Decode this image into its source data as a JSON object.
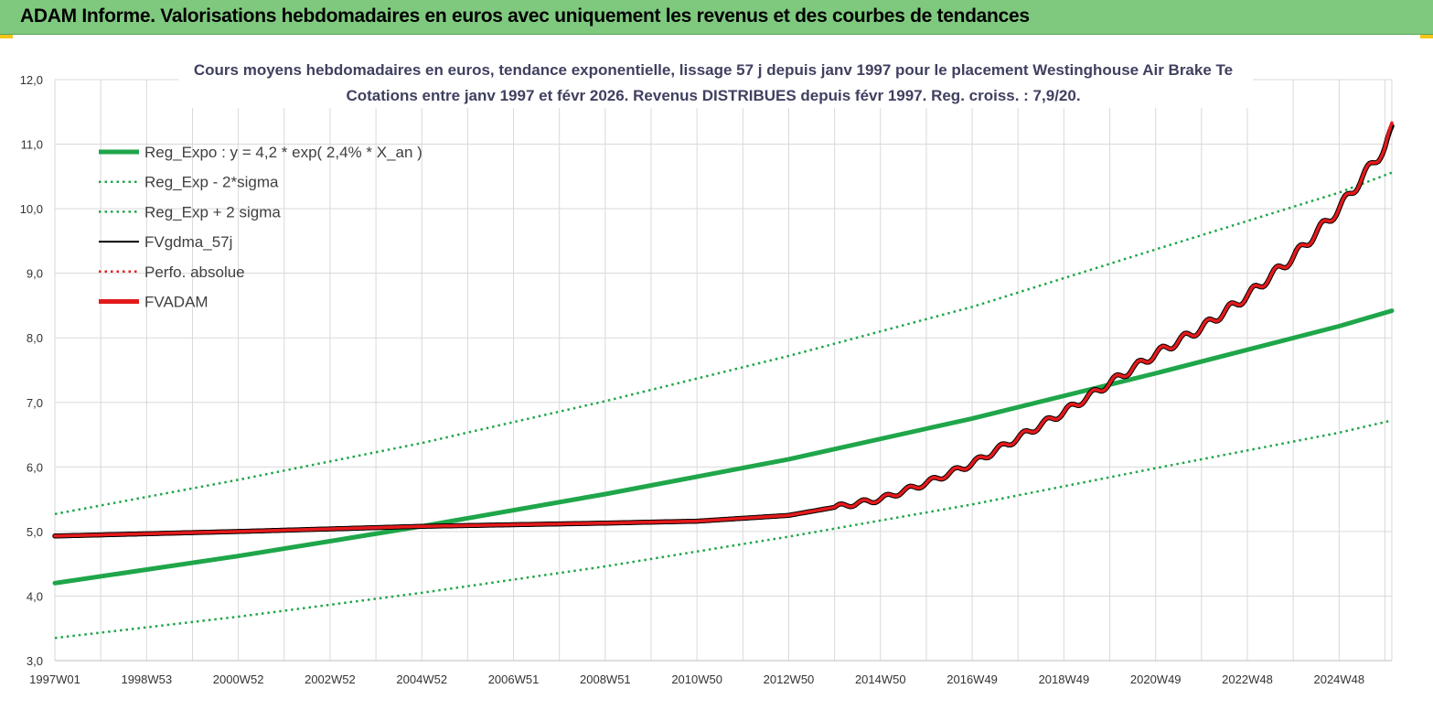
{
  "header": {
    "title": "ADAM Informe. Valorisations hebdomadaires en euros avec uniquement les revenus et des courbes de tendances"
  },
  "chart_data": {
    "type": "line",
    "title_line1": "Cours moyens hebdomadaires en euros, tendance exponentielle, lissage 57 j depuis janv 1997  pour le placement Westinghouse Air Brake Te",
    "title_line2": "Cotations entre janv 1997  et févr  2026.  Revenus DISTRIBUES  depuis févr 1997.  Reg. croiss. : 7,9/20.",
    "xlabel": "",
    "ylabel": "",
    "ylim": [
      3.0,
      12.0
    ],
    "xlim": [
      1997.0,
      2026.15
    ],
    "y_ticks": [
      "3,0",
      "4,0",
      "5,0",
      "6,0",
      "7,0",
      "8,0",
      "9,0",
      "10,0",
      "11,0",
      "12,0"
    ],
    "x_ticks": [
      {
        "label": "1997W01",
        "x": 1997.0
      },
      {
        "label": "1998W53",
        "x": 1999.0
      },
      {
        "label": "2000W52",
        "x": 2001.0
      },
      {
        "label": "2002W52",
        "x": 2003.0
      },
      {
        "label": "2004W52",
        "x": 2005.0
      },
      {
        "label": "2006W51",
        "x": 2007.0
      },
      {
        "label": "2008W51",
        "x": 2009.0
      },
      {
        "label": "2010W50",
        "x": 2011.0
      },
      {
        "label": "2012W50",
        "x": 2013.0
      },
      {
        "label": "2014W50",
        "x": 2015.0
      },
      {
        "label": "2016W49",
        "x": 2017.0
      },
      {
        "label": "2018W49",
        "x": 2019.0
      },
      {
        "label": "2020W49",
        "x": 2021.0
      },
      {
        "label": "2022W48",
        "x": 2023.0
      },
      {
        "label": "2024W48",
        "x": 2025.0
      }
    ],
    "grid": true,
    "legend_position": "top-left",
    "series": [
      {
        "name": "Reg_Expo : y = 4,2 * exp( 2,4% *  X_an )",
        "style": "solid-thick",
        "color": "#1fa64a",
        "x": [
          1997.0,
          2001.0,
          2005.0,
          2009.0,
          2013.0,
          2017.0,
          2021.0,
          2025.0,
          2026.15
        ],
        "y": [
          4.2,
          4.62,
          5.08,
          5.58,
          6.12,
          6.75,
          7.45,
          8.18,
          8.42
        ]
      },
      {
        "name": "Reg_Exp - 2*sigma",
        "style": "dotted",
        "color": "#1fa64a",
        "x": [
          1997.0,
          2001.0,
          2005.0,
          2009.0,
          2013.0,
          2017.0,
          2021.0,
          2025.0,
          2026.15
        ],
        "y": [
          3.35,
          3.68,
          4.05,
          4.46,
          4.92,
          5.42,
          5.98,
          6.53,
          6.72
        ]
      },
      {
        "name": "Reg_Exp + 2 sigma",
        "style": "dotted",
        "color": "#1fa64a",
        "x": [
          1997.0,
          2001.0,
          2005.0,
          2009.0,
          2013.0,
          2017.0,
          2021.0,
          2025.0,
          2026.15
        ],
        "y": [
          5.27,
          5.8,
          6.37,
          7.02,
          7.72,
          8.48,
          9.37,
          10.25,
          10.56
        ]
      },
      {
        "name": "FVgdma_57j",
        "style": "solid",
        "color": "#000000",
        "x": [
          1997.0,
          2001.0,
          2005.0,
          2009.0,
          2011.0,
          2013.0,
          2015.0,
          2016.0,
          2017.0,
          2018.0,
          2019.0,
          2020.0,
          2021.0,
          2022.0,
          2023.0,
          2024.0,
          2025.0,
          2026.0,
          2026.15
        ],
        "y": [
          4.93,
          5.0,
          5.08,
          5.13,
          5.16,
          5.25,
          5.5,
          5.75,
          6.05,
          6.45,
          6.85,
          7.3,
          7.75,
          8.15,
          8.65,
          9.25,
          10.0,
          10.95,
          11.2
        ]
      },
      {
        "name": "Perfo. absolue",
        "style": "dotted",
        "color": "#e31a1c",
        "x": [],
        "y": []
      },
      {
        "name": "FVADAM",
        "style": "solid-thick",
        "color": "#e31a1c",
        "x": [
          1997.0,
          2001.0,
          2005.0,
          2009.0,
          2011.0,
          2013.0,
          2015.0,
          2016.0,
          2017.0,
          2018.0,
          2019.0,
          2020.0,
          2021.0,
          2022.0,
          2023.0,
          2024.0,
          2025.0,
          2026.0,
          2026.15
        ],
        "y": [
          4.93,
          5.0,
          5.08,
          5.13,
          5.16,
          5.25,
          5.5,
          5.75,
          6.05,
          6.45,
          6.85,
          7.3,
          7.75,
          8.15,
          8.65,
          9.25,
          10.0,
          10.95,
          11.25
        ]
      }
    ]
  }
}
